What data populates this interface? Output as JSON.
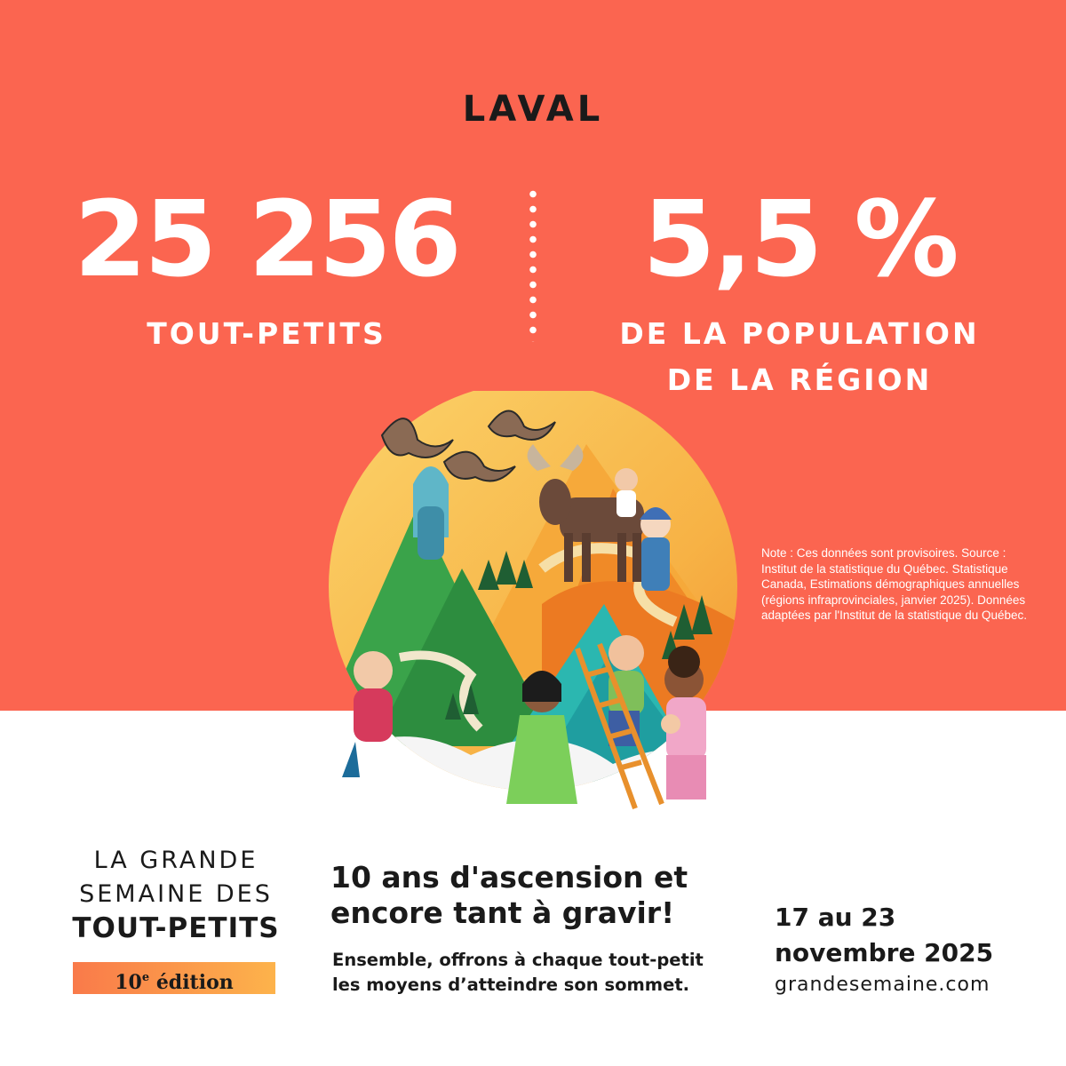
{
  "region": "LAVAL",
  "stats": {
    "left": {
      "value": "25 256",
      "label": "TOUT-PETITS"
    },
    "right": {
      "value": "5,5 %",
      "label_line1": "DE LA POPULATION",
      "label_line2": "DE LA RÉGION"
    }
  },
  "note": "Note : Ces données sont provisoires. Source : Institut de la statistique du Québec. Statistique Canada, Estimations démographiques annuelles (régions infraprovinciales, janvier 2025). Données adaptées par l'Institut de la statistique du Québec.",
  "brand": {
    "line1": "LA GRANDE",
    "line2": "SEMAINE DES",
    "line3": "TOUT-PETITS",
    "edition_number": "10",
    "edition_sup": "e",
    "edition_word": "édition"
  },
  "tagline": {
    "line1": "10 ans d'ascension et",
    "line2": "encore tant à gravir!",
    "sub_line1": "Ensemble, offrons à chaque tout-petit",
    "sub_line2": "les moyens d’atteindre son sommet."
  },
  "event": {
    "dates_line1": "17 au 23",
    "dates_line2": "novembre 2025",
    "website": "grandesemaine.com"
  },
  "colors": {
    "background_top": "#fb6550",
    "background_bottom": "#ffffff",
    "text_dark": "#1a1a1a",
    "text_light": "#ffffff",
    "badge_gradient_start": "#f97a4a",
    "badge_gradient_end": "#fdb34b"
  },
  "illustration_icon": "paper-craft-mountain-children-moose-geese"
}
